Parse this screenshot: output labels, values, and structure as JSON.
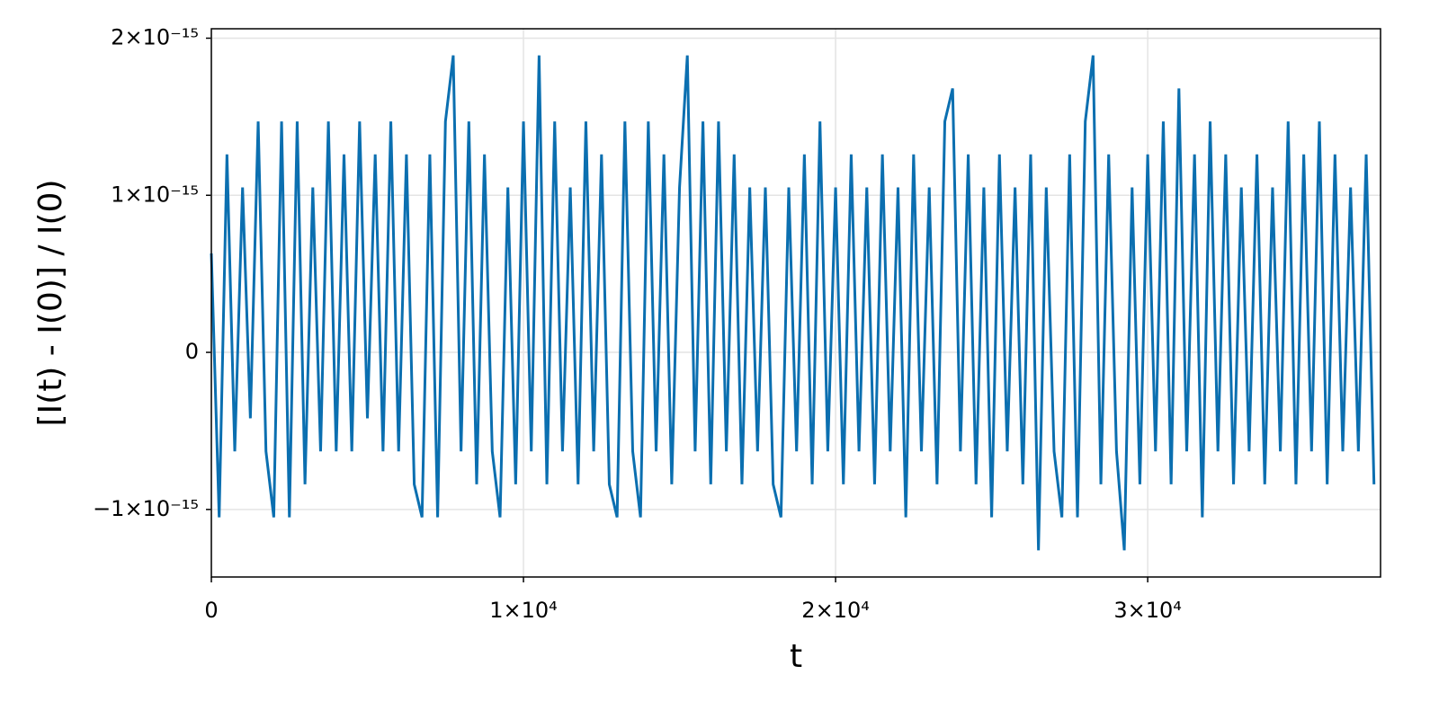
{
  "chart_data": {
    "type": "line",
    "x_label": "t",
    "y_label": "[I(t) - I(0)] / I(0)",
    "color": "#0b6fb0",
    "grid": true,
    "xlim": [
      0,
      37460
    ],
    "ylim": [
      -1.43e-15,
      2.06e-15
    ],
    "xticks": [
      0,
      {
        "value": 10000,
        "label": "1×10⁴"
      },
      {
        "value": 20000,
        "label": "2×10⁴"
      },
      {
        "value": 30000,
        "label": "3×10⁴"
      }
    ],
    "yticks": [
      {
        "value": -1e-15,
        "label": "−1×10⁻¹⁵"
      },
      0,
      {
        "value": 1e-15,
        "label": "1×10⁻¹⁵"
      },
      {
        "value": 2e-15,
        "label": "2×10⁻¹⁵"
      }
    ],
    "x": [
      0,
      250,
      500,
      750,
      1000,
      1250,
      1500,
      1750,
      2000,
      2250,
      2500,
      2750,
      3000,
      3250,
      3500,
      3750,
      4000,
      4250,
      4500,
      4750,
      5000,
      5250,
      5500,
      5750,
      6000,
      6250,
      6500,
      6750,
      7000,
      7250,
      7500,
      7750,
      8000,
      8250,
      8500,
      8750,
      9000,
      9250,
      9500,
      9750,
      10000,
      10250,
      10500,
      10750,
      11000,
      11250,
      11500,
      11750,
      12000,
      12250,
      12500,
      12750,
      13000,
      13250,
      13500,
      13750,
      14000,
      14250,
      14500,
      14750,
      15000,
      15250,
      15500,
      15750,
      16000,
      16250,
      16500,
      16750,
      17000,
      17250,
      17500,
      17750,
      18000,
      18250,
      18500,
      18750,
      19000,
      19250,
      19500,
      19750,
      20000,
      20250,
      20500,
      20750,
      21000,
      21250,
      21500,
      21750,
      22000,
      22250,
      22500,
      22750,
      23000,
      23250,
      23500,
      23750,
      24000,
      24250,
      24500,
      24750,
      25000,
      25250,
      25500,
      25750,
      26000,
      26250,
      26500,
      26750,
      27000,
      27250,
      27500,
      27750,
      28000,
      28250,
      28500,
      28750,
      29000,
      29250,
      29500,
      29750,
      30000,
      30250,
      30500,
      30750,
      31000,
      31250,
      31500,
      31750,
      32000,
      32250,
      32500,
      32750,
      33000,
      33250,
      33500,
      33750,
      34000,
      34250,
      34500,
      34750,
      35000,
      35250,
      35500,
      35750,
      36000,
      36250,
      36500,
      36750,
      37000,
      37250
    ],
    "values": [
      6.3e-16,
      -1.05e-15,
      1.26e-15,
      -6.3e-16,
      1.05e-15,
      -4.2e-16,
      1.47e-15,
      -6.3e-16,
      -1.05e-15,
      1.47e-15,
      -1.05e-15,
      1.47e-15,
      -8.4e-16,
      1.05e-15,
      -6.3e-16,
      1.47e-15,
      -6.3e-16,
      1.26e-15,
      -6.3e-16,
      1.47e-15,
      -4.2e-16,
      1.26e-15,
      -6.3e-16,
      1.47e-15,
      -6.3e-16,
      1.26e-15,
      -8.4e-16,
      -1.05e-15,
      1.26e-15,
      -1.05e-15,
      1.47e-15,
      1.89e-15,
      -6.3e-16,
      1.47e-15,
      -8.4e-16,
      1.26e-15,
      -6.3e-16,
      -1.05e-15,
      1.05e-15,
      -8.4e-16,
      1.47e-15,
      -6.3e-16,
      1.89e-15,
      -8.4e-16,
      1.47e-15,
      -6.3e-16,
      1.05e-15,
      -8.4e-16,
      1.47e-15,
      -6.3e-16,
      1.26e-15,
      -8.4e-16,
      -1.05e-15,
      1.47e-15,
      -6.3e-16,
      -1.05e-15,
      1.47e-15,
      -6.3e-16,
      1.26e-15,
      -8.4e-16,
      1.05e-15,
      1.89e-15,
      -6.3e-16,
      1.47e-15,
      -8.4e-16,
      1.47e-15,
      -6.3e-16,
      1.26e-15,
      -8.4e-16,
      1.05e-15,
      -6.3e-16,
      1.05e-15,
      -8.4e-16,
      -1.05e-15,
      1.05e-15,
      -6.3e-16,
      1.26e-15,
      -8.4e-16,
      1.47e-15,
      -6.3e-16,
      1.05e-15,
      -8.4e-16,
      1.26e-15,
      -6.3e-16,
      1.05e-15,
      -8.4e-16,
      1.26e-15,
      -6.3e-16,
      1.05e-15,
      -1.05e-15,
      1.26e-15,
      -6.3e-16,
      1.05e-15,
      -8.4e-16,
      1.47e-15,
      1.68e-15,
      -6.3e-16,
      1.26e-15,
      -8.4e-16,
      1.05e-15,
      -1.05e-15,
      1.26e-15,
      -6.3e-16,
      1.05e-15,
      -8.4e-16,
      1.26e-15,
      -1.26e-15,
      1.05e-15,
      -6.3e-16,
      -1.05e-15,
      1.26e-15,
      -1.05e-15,
      1.47e-15,
      1.89e-15,
      -8.4e-16,
      1.26e-15,
      -6.3e-16,
      -1.26e-15,
      1.05e-15,
      -8.4e-16,
      1.26e-15,
      -6.3e-16,
      1.47e-15,
      -8.4e-16,
      1.68e-15,
      -6.3e-16,
      1.26e-15,
      -1.05e-15,
      1.47e-15,
      -6.3e-16,
      1.26e-15,
      -8.4e-16,
      1.05e-15,
      -6.3e-16,
      1.26e-15,
      -8.4e-16,
      1.05e-15,
      -6.3e-16,
      1.47e-15,
      -8.4e-16,
      1.26e-15,
      -6.3e-16,
      1.47e-15,
      -8.4e-16,
      1.26e-15,
      -6.3e-16,
      1.05e-15,
      -6.3e-16,
      1.26e-15,
      -8.4e-16
    ]
  }
}
